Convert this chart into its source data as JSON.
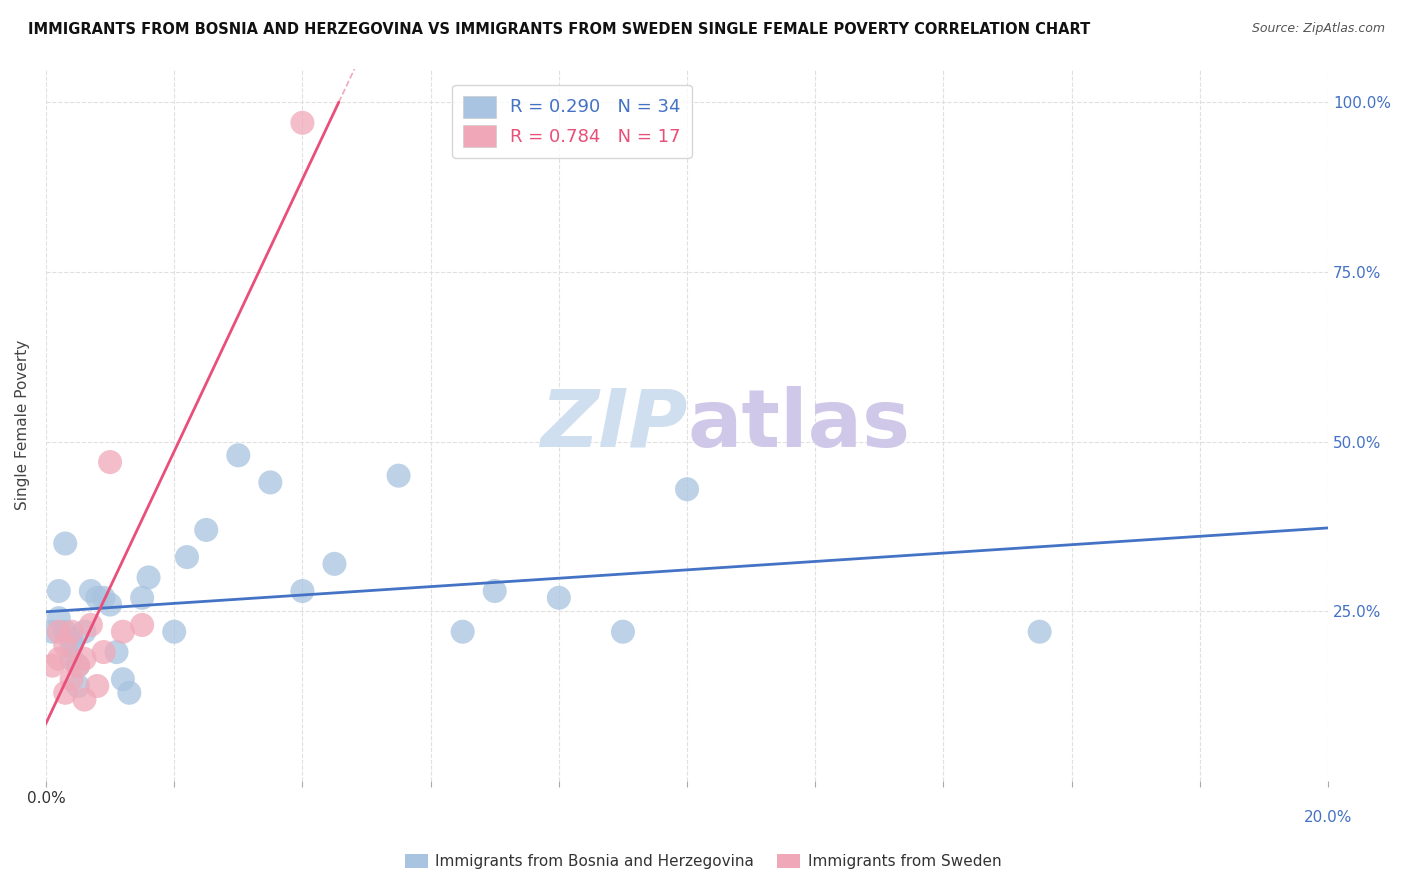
{
  "title": "IMMIGRANTS FROM BOSNIA AND HERZEGOVINA VS IMMIGRANTS FROM SWEDEN SINGLE FEMALE POVERTY CORRELATION CHART",
  "source": "Source: ZipAtlas.com",
  "ylabel": "Single Female Poverty",
  "xlim": [
    0.0,
    0.2
  ],
  "ylim": [
    0.0,
    1.05
  ],
  "yticks": [
    0.0,
    0.25,
    0.5,
    0.75,
    1.0
  ],
  "xticks": [
    0.0,
    0.02,
    0.04,
    0.06,
    0.08,
    0.1,
    0.12,
    0.14,
    0.16,
    0.18,
    0.2
  ],
  "xtick_labels_show": [
    "0.0%",
    "20.0%"
  ],
  "R_bosnia": 0.29,
  "N_bosnia": 34,
  "R_sweden": 0.784,
  "N_sweden": 17,
  "bosnia_color": "#a8c4e0",
  "sweden_color": "#f0a8b8",
  "bosnia_line_color": "#4472c4",
  "sweden_line_color": "#e8507a",
  "bosnia_points_x": [
    0.001,
    0.002,
    0.002,
    0.003,
    0.003,
    0.004,
    0.004,
    0.004,
    0.005,
    0.005,
    0.006,
    0.007,
    0.008,
    0.009,
    0.01,
    0.011,
    0.012,
    0.013,
    0.015,
    0.016,
    0.02,
    0.022,
    0.025,
    0.03,
    0.035,
    0.04,
    0.045,
    0.055,
    0.065,
    0.07,
    0.08,
    0.09,
    0.1,
    0.155
  ],
  "bosnia_points_y": [
    0.22,
    0.28,
    0.24,
    0.35,
    0.22,
    0.2,
    0.18,
    0.21,
    0.14,
    0.17,
    0.22,
    0.28,
    0.27,
    0.27,
    0.26,
    0.19,
    0.15,
    0.13,
    0.27,
    0.3,
    0.22,
    0.33,
    0.37,
    0.48,
    0.44,
    0.28,
    0.32,
    0.45,
    0.22,
    0.28,
    0.27,
    0.22,
    0.43,
    0.22
  ],
  "sweden_points_x": [
    0.001,
    0.002,
    0.002,
    0.003,
    0.003,
    0.004,
    0.004,
    0.005,
    0.006,
    0.006,
    0.007,
    0.008,
    0.009,
    0.01,
    0.012,
    0.015,
    0.04
  ],
  "sweden_points_y": [
    0.17,
    0.22,
    0.18,
    0.2,
    0.13,
    0.22,
    0.15,
    0.17,
    0.18,
    0.12,
    0.23,
    0.14,
    0.19,
    0.47,
    0.22,
    0.23,
    0.97
  ],
  "watermark_zip": "ZIP",
  "watermark_atlas": "atlas",
  "watermark_color_zip": "#d0dff0",
  "watermark_color_atlas": "#d0c8e8",
  "grid_color": "#e0e0e0",
  "background_color": "#ffffff",
  "legend_label_bosnia": "Immigrants from Bosnia and Herzegovina",
  "legend_label_sweden": "Immigrants from Sweden",
  "bosnia_line_start_x": 0.0,
  "bosnia_line_end_x": 0.2,
  "sweden_line_start_x": 0.0,
  "sweden_line_end_x": 0.2
}
